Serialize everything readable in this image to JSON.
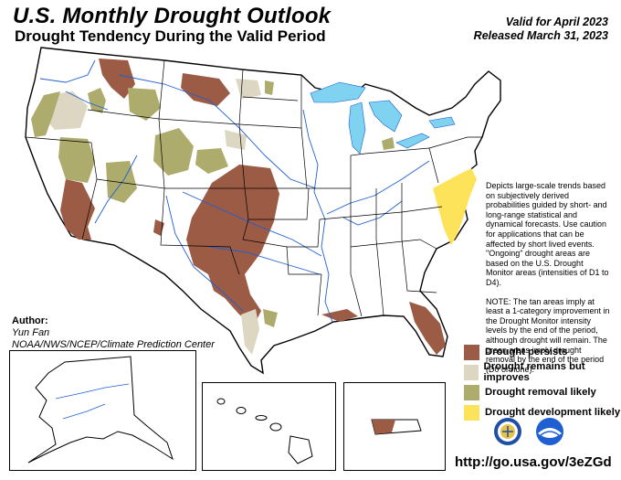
{
  "header": {
    "title": "U.S. Monthly Drought Outlook",
    "subtitle": "Drought Tendency During the Valid Period",
    "valid": "Valid for April 2023",
    "released": "Released March 31, 2023"
  },
  "author": {
    "label": "Author:",
    "name": "Yun Fan",
    "org": "NOAA/NWS/NCEP/Climate Prediction Center"
  },
  "note": {
    "p1": "Depicts large-scale trends based on subjectively derived probabilities guided by short- and long-range statistical and dynamical forecasts. Use caution for applications that can be affected by short lived events. \"Ongoing\" drought areas are based on the U.S. Drought Monitor areas (intensities of D1 to D4).",
    "p2": "NOTE: The tan areas imply at least a 1-category improvement in the Drought Monitor intensity levels by the end of the period, although drought will remain. The green areas imply drought removal by the end of the period (D0 or none)."
  },
  "legend": [
    {
      "label": "Drought persists",
      "color": "#9c5b45"
    },
    {
      "label": "Drought remains but improves",
      "color": "#ddd6c2"
    },
    {
      "label": "Drought removal likely",
      "color": "#adac6d"
    },
    {
      "label": "Drought development likely",
      "color": "#fde35a"
    }
  ],
  "colors": {
    "water": "#7fd3f0",
    "river": "#1f5fd1",
    "boundary": "#000000"
  },
  "logos": [
    "doc-seal-icon",
    "noaa-logo-icon"
  ],
  "url": "http://go.usa.gov/3eZGd"
}
